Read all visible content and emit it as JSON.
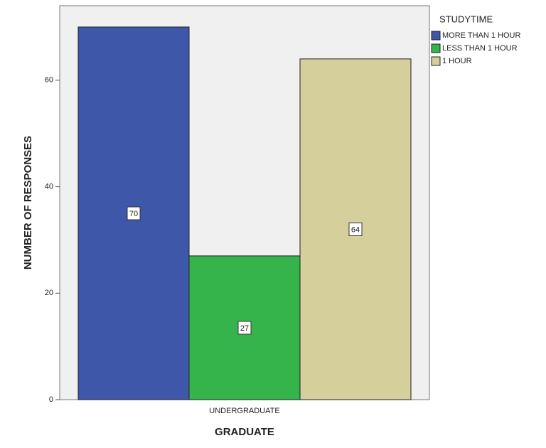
{
  "chart_data": {
    "type": "bar",
    "x_label": "GRADUATE",
    "y_label": "NUMBER OF RESPONSES",
    "categories": [
      "UNDERGRADUATE"
    ],
    "legend_title": "STUDYTIME",
    "series": [
      {
        "name": "MORE THAN 1 HOUR",
        "color": "#3f57a9",
        "values": [
          70
        ]
      },
      {
        "name": "LESS THAN 1 HOUR",
        "color": "#34b44b",
        "values": [
          27
        ]
      },
      {
        "name": "1 HOUR",
        "color": "#d4cf9b",
        "values": [
          64
        ]
      }
    ],
    "ylim": [
      0,
      74
    ],
    "yticks": [
      0,
      20,
      40,
      60
    ],
    "grid": false,
    "legend": "right",
    "data_labels": true
  }
}
